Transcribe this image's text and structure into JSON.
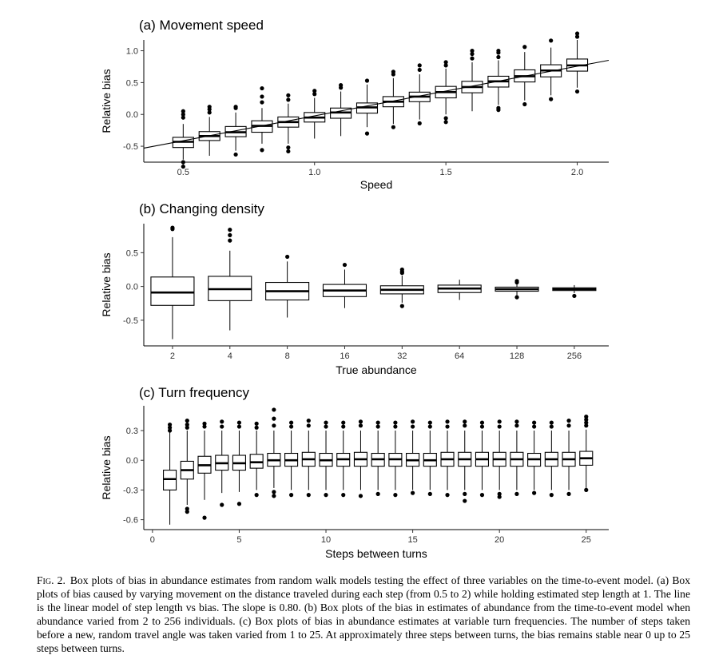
{
  "charts": [
    {
      "key": "a",
      "type": "box",
      "title": "(a) Movement speed",
      "xlabel": "Speed",
      "ylabel": "Relative bias",
      "xlim": [
        0.35,
        2.12
      ],
      "ylim": [
        -0.75,
        1.17
      ],
      "xticks": [
        {
          "v": 0.5,
          "label": "0.5"
        },
        {
          "v": 1.0,
          "label": "1.0"
        },
        {
          "v": 1.5,
          "label": "1.5"
        },
        {
          "v": 2.0,
          "label": "2.0"
        }
      ],
      "yticks": [
        {
          "v": 1.0,
          "label": "1.0"
        },
        {
          "v": 0.5,
          "label": "0.5"
        },
        {
          "v": 0.0,
          "label": "0.0"
        },
        {
          "v": -0.5,
          "label": "-0.5"
        }
      ],
      "trend_line": {
        "x1": 0.35,
        "y1": -0.53,
        "x2": 2.12,
        "y2": 0.85
      }
    },
    {
      "key": "b",
      "type": "box",
      "title": "(b) Changing density",
      "xlabel": "True abundance",
      "ylabel": "Relative bias",
      "xlim": [
        0.5,
        8.6
      ],
      "ylim": [
        -0.88,
        0.93
      ],
      "xticks": [
        {
          "v": 1,
          "label": "2"
        },
        {
          "v": 2,
          "label": "4"
        },
        {
          "v": 3,
          "label": "8"
        },
        {
          "v": 4,
          "label": "16"
        },
        {
          "v": 5,
          "label": "32"
        },
        {
          "v": 6,
          "label": "64"
        },
        {
          "v": 7,
          "label": "128"
        },
        {
          "v": 8,
          "label": "256"
        }
      ],
      "yticks": [
        {
          "v": 0.5,
          "label": "0.5"
        },
        {
          "v": 0.0,
          "label": "0.0"
        },
        {
          "v": -0.5,
          "label": "-0.5"
        }
      ]
    },
    {
      "key": "c",
      "type": "box",
      "title": "(c) Turn frequency",
      "xlabel": "Steps between turns",
      "ylabel": "Relative bias",
      "xlim": [
        -0.5,
        26.3
      ],
      "ylim": [
        -0.7,
        0.55
      ],
      "xticks": [
        {
          "v": 0,
          "label": "0"
        },
        {
          "v": 5,
          "label": "5"
        },
        {
          "v": 10,
          "label": "10"
        },
        {
          "v": 15,
          "label": "15"
        },
        {
          "v": 20,
          "label": "20"
        },
        {
          "v": 25,
          "label": "25"
        }
      ],
      "yticks": [
        {
          "v": 0.3,
          "label": "0.3"
        },
        {
          "v": 0.0,
          "label": "0.0"
        },
        {
          "v": -0.3,
          "label": "-0.3"
        },
        {
          "v": -0.6,
          "label": "-0.6"
        }
      ]
    }
  ],
  "chart_data": [
    {
      "type": "box",
      "title": "(a) Movement speed",
      "xlabel": "Speed",
      "ylabel": "Relative bias",
      "boxes": [
        {
          "x": 0.5,
          "q1": -0.52,
          "median": -0.43,
          "q3": -0.36,
          "wlo": -0.71,
          "whi": -0.15,
          "out": [
            -0.82,
            -0.75,
            -0.05,
            0.0,
            0.05
          ]
        },
        {
          "x": 0.6,
          "q1": -0.41,
          "median": -0.34,
          "q3": -0.27,
          "wlo": -0.65,
          "whi": -0.04,
          "out": [
            0.03,
            0.08,
            0.12
          ]
        },
        {
          "x": 0.7,
          "q1": -0.35,
          "median": -0.28,
          "q3": -0.19,
          "wlo": -0.57,
          "whi": 0.03,
          "out": [
            -0.63,
            0.1,
            0.12
          ]
        },
        {
          "x": 0.8,
          "q1": -0.28,
          "median": -0.18,
          "q3": -0.1,
          "wlo": -0.46,
          "whi": 0.1,
          "out": [
            -0.56,
            0.19,
            0.28,
            0.41
          ]
        },
        {
          "x": 0.9,
          "q1": -0.2,
          "median": -0.12,
          "q3": -0.04,
          "wlo": -0.46,
          "whi": 0.17,
          "out": [
            -0.58,
            -0.52,
            0.23,
            0.3
          ]
        },
        {
          "x": 1.0,
          "q1": -0.12,
          "median": -0.05,
          "q3": 0.03,
          "wlo": -0.38,
          "whi": 0.26,
          "out": [
            0.32,
            0.37
          ]
        },
        {
          "x": 1.1,
          "q1": -0.06,
          "median": 0.03,
          "q3": 0.1,
          "wlo": -0.34,
          "whi": 0.36,
          "out": [
            0.42,
            0.46
          ]
        },
        {
          "x": 1.2,
          "q1": 0.02,
          "median": 0.11,
          "q3": 0.18,
          "wlo": -0.2,
          "whi": 0.47,
          "out": [
            -0.3,
            0.53
          ]
        },
        {
          "x": 1.3,
          "q1": 0.12,
          "median": 0.2,
          "q3": 0.28,
          "wlo": -0.15,
          "whi": 0.57,
          "out": [
            -0.2,
            0.63,
            0.67
          ]
        },
        {
          "x": 1.4,
          "q1": 0.2,
          "median": 0.28,
          "q3": 0.35,
          "wlo": -0.08,
          "whi": 0.63,
          "out": [
            -0.14,
            0.7,
            0.77
          ]
        },
        {
          "x": 1.5,
          "q1": 0.26,
          "median": 0.35,
          "q3": 0.44,
          "wlo": 0.0,
          "whi": 0.72,
          "out": [
            -0.12,
            -0.06,
            0.77,
            0.82
          ]
        },
        {
          "x": 1.6,
          "q1": 0.34,
          "median": 0.43,
          "q3": 0.52,
          "wlo": 0.05,
          "whi": 0.82,
          "out": [
            0.88,
            0.95,
            1.0
          ]
        },
        {
          "x": 1.7,
          "q1": 0.43,
          "median": 0.52,
          "q3": 0.6,
          "wlo": 0.15,
          "whi": 0.85,
          "out": [
            0.07,
            0.1,
            0.9,
            0.97,
            1.0
          ]
        },
        {
          "x": 1.8,
          "q1": 0.51,
          "median": 0.6,
          "q3": 0.7,
          "wlo": 0.22,
          "whi": 0.98,
          "out": [
            0.16,
            1.06
          ]
        },
        {
          "x": 1.9,
          "q1": 0.59,
          "median": 0.69,
          "q3": 0.78,
          "wlo": 0.3,
          "whi": 1.05,
          "out": [
            0.24,
            1.16
          ]
        },
        {
          "x": 2.0,
          "q1": 0.68,
          "median": 0.77,
          "q3": 0.87,
          "wlo": 0.42,
          "whi": 1.17,
          "out": [
            0.36,
            1.22,
            1.27
          ]
        }
      ],
      "trend_line_slope": 0.8
    },
    {
      "type": "box",
      "title": "(b) Changing density",
      "xlabel": "True abundance",
      "ylabel": "Relative bias",
      "categories": [
        "2",
        "4",
        "8",
        "16",
        "32",
        "64",
        "128",
        "256"
      ],
      "boxes": [
        {
          "x": 1,
          "q1": -0.28,
          "median": -0.09,
          "q3": 0.14,
          "wlo": -0.78,
          "whi": 0.73,
          "out": [
            0.85,
            0.87
          ]
        },
        {
          "x": 2,
          "q1": -0.21,
          "median": -0.04,
          "q3": 0.15,
          "wlo": -0.65,
          "whi": 0.53,
          "out": [
            0.68,
            0.76,
            0.84
          ]
        },
        {
          "x": 3,
          "q1": -0.2,
          "median": -0.07,
          "q3": 0.06,
          "wlo": -0.46,
          "whi": 0.37,
          "out": [
            0.44
          ]
        },
        {
          "x": 4,
          "q1": -0.15,
          "median": -0.06,
          "q3": 0.03,
          "wlo": -0.32,
          "whi": 0.25,
          "out": [
            0.32
          ]
        },
        {
          "x": 5,
          "q1": -0.11,
          "median": -0.05,
          "q3": 0.01,
          "wlo": -0.24,
          "whi": 0.16,
          "out": [
            -0.29,
            0.2,
            0.22,
            0.25
          ]
        },
        {
          "x": 6,
          "q1": -0.09,
          "median": -0.03,
          "q3": 0.02,
          "wlo": -0.2,
          "whi": 0.1,
          "out": []
        },
        {
          "x": 7,
          "q1": -0.07,
          "median": -0.04,
          "q3": -0.01,
          "wlo": -0.13,
          "whi": 0.04,
          "out": [
            -0.16,
            0.06,
            0.08
          ]
        },
        {
          "x": 8,
          "q1": -0.06,
          "median": -0.04,
          "q3": -0.02,
          "wlo": -0.1,
          "whi": 0.02,
          "out": [
            -0.14
          ]
        }
      ]
    },
    {
      "type": "box",
      "title": "(c) Turn frequency",
      "xlabel": "Steps between turns",
      "ylabel": "Relative bias",
      "boxes": [
        {
          "x": 1,
          "q1": -0.3,
          "median": -0.19,
          "q3": -0.1,
          "wlo": -0.65,
          "whi": 0.28,
          "out": [
            0.3,
            0.33,
            0.36
          ]
        },
        {
          "x": 2,
          "q1": -0.19,
          "median": -0.1,
          "q3": -0.01,
          "wlo": -0.45,
          "whi": 0.3,
          "out": [
            -0.52,
            -0.49,
            0.33,
            0.36,
            0.4
          ]
        },
        {
          "x": 3,
          "q1": -0.13,
          "median": -0.05,
          "q3": 0.04,
          "wlo": -0.4,
          "whi": 0.3,
          "out": [
            -0.58,
            0.34,
            0.37
          ]
        },
        {
          "x": 4,
          "q1": -0.1,
          "median": -0.03,
          "q3": 0.05,
          "wlo": -0.33,
          "whi": 0.3,
          "out": [
            -0.45,
            0.34,
            0.39
          ]
        },
        {
          "x": 5,
          "q1": -0.1,
          "median": -0.03,
          "q3": 0.05,
          "wlo": -0.32,
          "whi": 0.3,
          "out": [
            -0.44,
            0.34,
            0.38
          ]
        },
        {
          "x": 6,
          "q1": -0.08,
          "median": -0.02,
          "q3": 0.06,
          "wlo": -0.3,
          "whi": 0.3,
          "out": [
            -0.35,
            0.33,
            0.37
          ]
        },
        {
          "x": 7,
          "q1": -0.06,
          "median": 0.0,
          "q3": 0.07,
          "wlo": -0.28,
          "whi": 0.3,
          "out": [
            -0.36,
            -0.32,
            0.35,
            0.42,
            0.51
          ]
        },
        {
          "x": 8,
          "q1": -0.06,
          "median": 0.0,
          "q3": 0.07,
          "wlo": -0.3,
          "whi": 0.3,
          "out": [
            -0.35,
            0.34,
            0.38
          ]
        },
        {
          "x": 9,
          "q1": -0.06,
          "median": 0.01,
          "q3": 0.08,
          "wlo": -0.3,
          "whi": 0.3,
          "out": [
            -0.35,
            0.35,
            0.4
          ]
        },
        {
          "x": 10,
          "q1": -0.06,
          "median": 0.0,
          "q3": 0.07,
          "wlo": -0.3,
          "whi": 0.3,
          "out": [
            -0.35,
            0.34,
            0.38
          ]
        },
        {
          "x": 11,
          "q1": -0.06,
          "median": 0.01,
          "q3": 0.07,
          "wlo": -0.3,
          "whi": 0.3,
          "out": [
            -0.35,
            0.34,
            0.38
          ]
        },
        {
          "x": 12,
          "q1": -0.06,
          "median": 0.01,
          "q3": 0.08,
          "wlo": -0.3,
          "whi": 0.3,
          "out": [
            -0.36,
            0.35,
            0.39
          ]
        },
        {
          "x": 13,
          "q1": -0.06,
          "median": 0.01,
          "q3": 0.07,
          "wlo": -0.3,
          "whi": 0.3,
          "out": [
            -0.34,
            0.34,
            0.38
          ]
        },
        {
          "x": 14,
          "q1": -0.06,
          "median": 0.01,
          "q3": 0.07,
          "wlo": -0.3,
          "whi": 0.3,
          "out": [
            -0.35,
            0.34,
            0.38
          ]
        },
        {
          "x": 15,
          "q1": -0.06,
          "median": 0.0,
          "q3": 0.07,
          "wlo": -0.3,
          "whi": 0.3,
          "out": [
            -0.33,
            0.34,
            0.39
          ]
        },
        {
          "x": 16,
          "q1": -0.06,
          "median": 0.0,
          "q3": 0.07,
          "wlo": -0.3,
          "whi": 0.3,
          "out": [
            -0.34,
            0.34,
            0.38
          ]
        },
        {
          "x": 17,
          "q1": -0.06,
          "median": 0.01,
          "q3": 0.08,
          "wlo": -0.3,
          "whi": 0.3,
          "out": [
            -0.35,
            0.34,
            0.39
          ]
        },
        {
          "x": 18,
          "q1": -0.06,
          "median": 0.01,
          "q3": 0.08,
          "wlo": -0.3,
          "whi": 0.3,
          "out": [
            -0.41,
            -0.34,
            0.35,
            0.39
          ]
        },
        {
          "x": 19,
          "q1": -0.06,
          "median": 0.01,
          "q3": 0.08,
          "wlo": -0.3,
          "whi": 0.3,
          "out": [
            -0.35,
            0.34,
            0.38
          ]
        },
        {
          "x": 20,
          "q1": -0.06,
          "median": 0.01,
          "q3": 0.08,
          "wlo": -0.3,
          "whi": 0.3,
          "out": [
            -0.37,
            -0.34,
            0.34,
            0.39
          ]
        },
        {
          "x": 21,
          "q1": -0.06,
          "median": 0.01,
          "q3": 0.08,
          "wlo": -0.3,
          "whi": 0.3,
          "out": [
            -0.34,
            0.35,
            0.39
          ]
        },
        {
          "x": 22,
          "q1": -0.06,
          "median": 0.01,
          "q3": 0.07,
          "wlo": -0.3,
          "whi": 0.3,
          "out": [
            -0.33,
            0.34,
            0.38
          ]
        },
        {
          "x": 23,
          "q1": -0.06,
          "median": 0.01,
          "q3": 0.08,
          "wlo": -0.3,
          "whi": 0.3,
          "out": [
            -0.35,
            0.34,
            0.38
          ]
        },
        {
          "x": 24,
          "q1": -0.06,
          "median": 0.01,
          "q3": 0.08,
          "wlo": -0.3,
          "whi": 0.3,
          "out": [
            -0.34,
            0.35,
            0.4
          ]
        },
        {
          "x": 25,
          "q1": -0.05,
          "median": 0.02,
          "q3": 0.09,
          "wlo": -0.28,
          "whi": 0.31,
          "out": [
            -0.3,
            0.35,
            0.38,
            0.41,
            0.44
          ]
        }
      ]
    }
  ],
  "caption": {
    "label": "Fig. 2.",
    "text": "Box plots of bias in abundance estimates from random walk models testing the effect of three variables on the time-to-event model. (a) Box plots of bias caused by varying movement on the distance traveled during each step (from 0.5 to 2) while holding estimated step length at 1. The line is the linear model of step length vs bias. The slope is 0.80. (b) Box plots of the bias in estimates of abundance from the time-to-event model when abundance varied from 2 to 256 individuals. (c) Box plots of bias in abundance estimates at variable turn frequencies. The number of steps taken before a new, random travel angle was taken varied from 1 to 25. At approximately three steps between turns, the bias remains stable near 0 up to 25 steps between turns."
  }
}
